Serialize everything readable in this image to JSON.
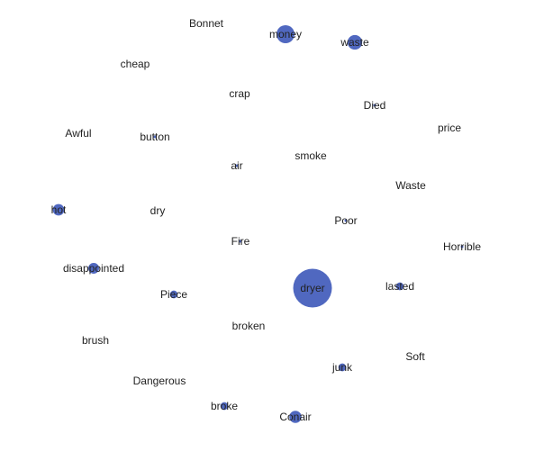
{
  "chart_data": {
    "type": "scatter",
    "title": "",
    "grid": false,
    "color": "#5068c0",
    "points": [
      {
        "label": "Bonnet",
        "weight": 0
      },
      {
        "label": "money",
        "weight": 18
      },
      {
        "label": "waste",
        "weight": 11
      },
      {
        "label": "cheap",
        "weight": 0
      },
      {
        "label": "crap",
        "weight": 0
      },
      {
        "label": "Died",
        "weight": 1
      },
      {
        "label": "price",
        "weight": 0
      },
      {
        "label": "Awful",
        "weight": 0
      },
      {
        "label": "button",
        "weight": 1
      },
      {
        "label": "smoke",
        "weight": 0
      },
      {
        "label": "air",
        "weight": 1
      },
      {
        "label": "Waste",
        "weight": 0
      },
      {
        "label": "hot",
        "weight": 6
      },
      {
        "label": "dry",
        "weight": 0
      },
      {
        "label": "Poor",
        "weight": 1
      },
      {
        "label": "Fire",
        "weight": 1
      },
      {
        "label": "Horrible",
        "weight": 1
      },
      {
        "label": "disappointed",
        "weight": 5
      },
      {
        "label": "dryer",
        "weight": 100
      },
      {
        "label": "lasted",
        "weight": 2
      },
      {
        "label": "Piece",
        "weight": 2
      },
      {
        "label": "broken",
        "weight": 0
      },
      {
        "label": "brush",
        "weight": 0
      },
      {
        "label": "Soft",
        "weight": 0
      },
      {
        "label": "junk",
        "weight": 2
      },
      {
        "label": "Dangerous",
        "weight": 0
      },
      {
        "label": "broke",
        "weight": 2
      },
      {
        "label": "Conair",
        "weight": 7
      }
    ]
  }
}
